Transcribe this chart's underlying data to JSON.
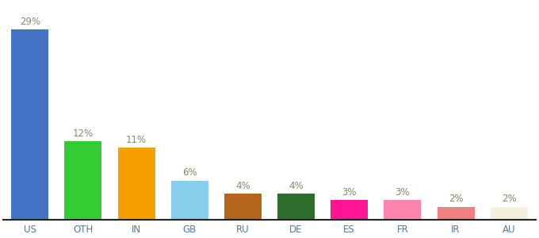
{
  "categories": [
    "US",
    "OTH",
    "IN",
    "GB",
    "RU",
    "DE",
    "ES",
    "FR",
    "IR",
    "AU"
  ],
  "values": [
    29,
    12,
    11,
    6,
    4,
    4,
    3,
    3,
    2,
    2
  ],
  "bar_colors": [
    "#4472c4",
    "#33cc33",
    "#f5a000",
    "#87ceeb",
    "#b5651d",
    "#2d6e2d",
    "#ff1493",
    "#ff85b0",
    "#f08080",
    "#f5f0dc"
  ],
  "ylim": [
    0,
    33
  ],
  "label_fontsize": 8.5,
  "tick_fontsize": 8.5,
  "label_color": "#888866",
  "tick_color": "#557799",
  "background_color": "#ffffff",
  "bar_width": 0.7
}
